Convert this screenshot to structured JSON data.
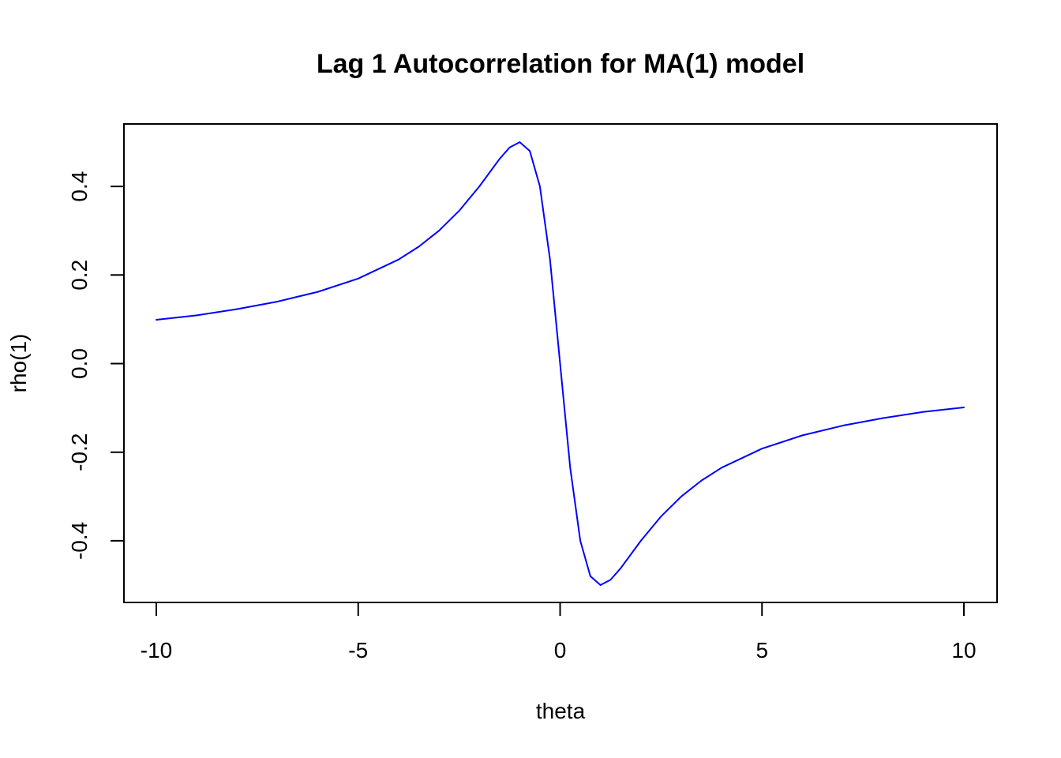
{
  "chart_data": {
    "type": "line",
    "title": "Lag 1 Autocorrelation for MA(1) model",
    "xlabel": "theta",
    "ylabel": "rho(1)",
    "xlim": [
      -10,
      10
    ],
    "ylim": [
      -0.5,
      0.5
    ],
    "x_ticks": [
      -10,
      -5,
      0,
      5,
      10
    ],
    "x_tick_labels": [
      "-10",
      "-5",
      "0",
      "5",
      "10"
    ],
    "y_ticks": [
      -0.4,
      -0.2,
      0.0,
      0.2,
      0.4
    ],
    "y_tick_labels": [
      "-0.4",
      "-0.2",
      "0.0",
      "0.2",
      "0.4"
    ],
    "grid": false,
    "legend": "none",
    "series": [
      {
        "color": "#0000ff",
        "x": [
          -10,
          -9,
          -8,
          -7,
          -6,
          -5,
          -4,
          -3.5,
          -3,
          -2.5,
          -2,
          -1.5,
          -1.25,
          -1,
          -0.75,
          -0.5,
          -0.25,
          0,
          0.25,
          0.5,
          0.75,
          1,
          1.25,
          1.5,
          2,
          2.5,
          3,
          3.5,
          4,
          5,
          6,
          7,
          8,
          9,
          10
        ],
        "y": [
          0.099,
          0.109,
          0.123,
          0.14,
          0.162,
          0.192,
          0.235,
          0.264,
          0.3,
          0.345,
          0.4,
          0.462,
          0.488,
          0.5,
          0.48,
          0.4,
          0.235,
          0.0,
          -0.235,
          -0.4,
          -0.48,
          -0.5,
          -0.488,
          -0.462,
          -0.4,
          -0.345,
          -0.3,
          -0.264,
          -0.235,
          -0.192,
          -0.162,
          -0.14,
          -0.123,
          -0.109,
          -0.099
        ]
      }
    ]
  }
}
